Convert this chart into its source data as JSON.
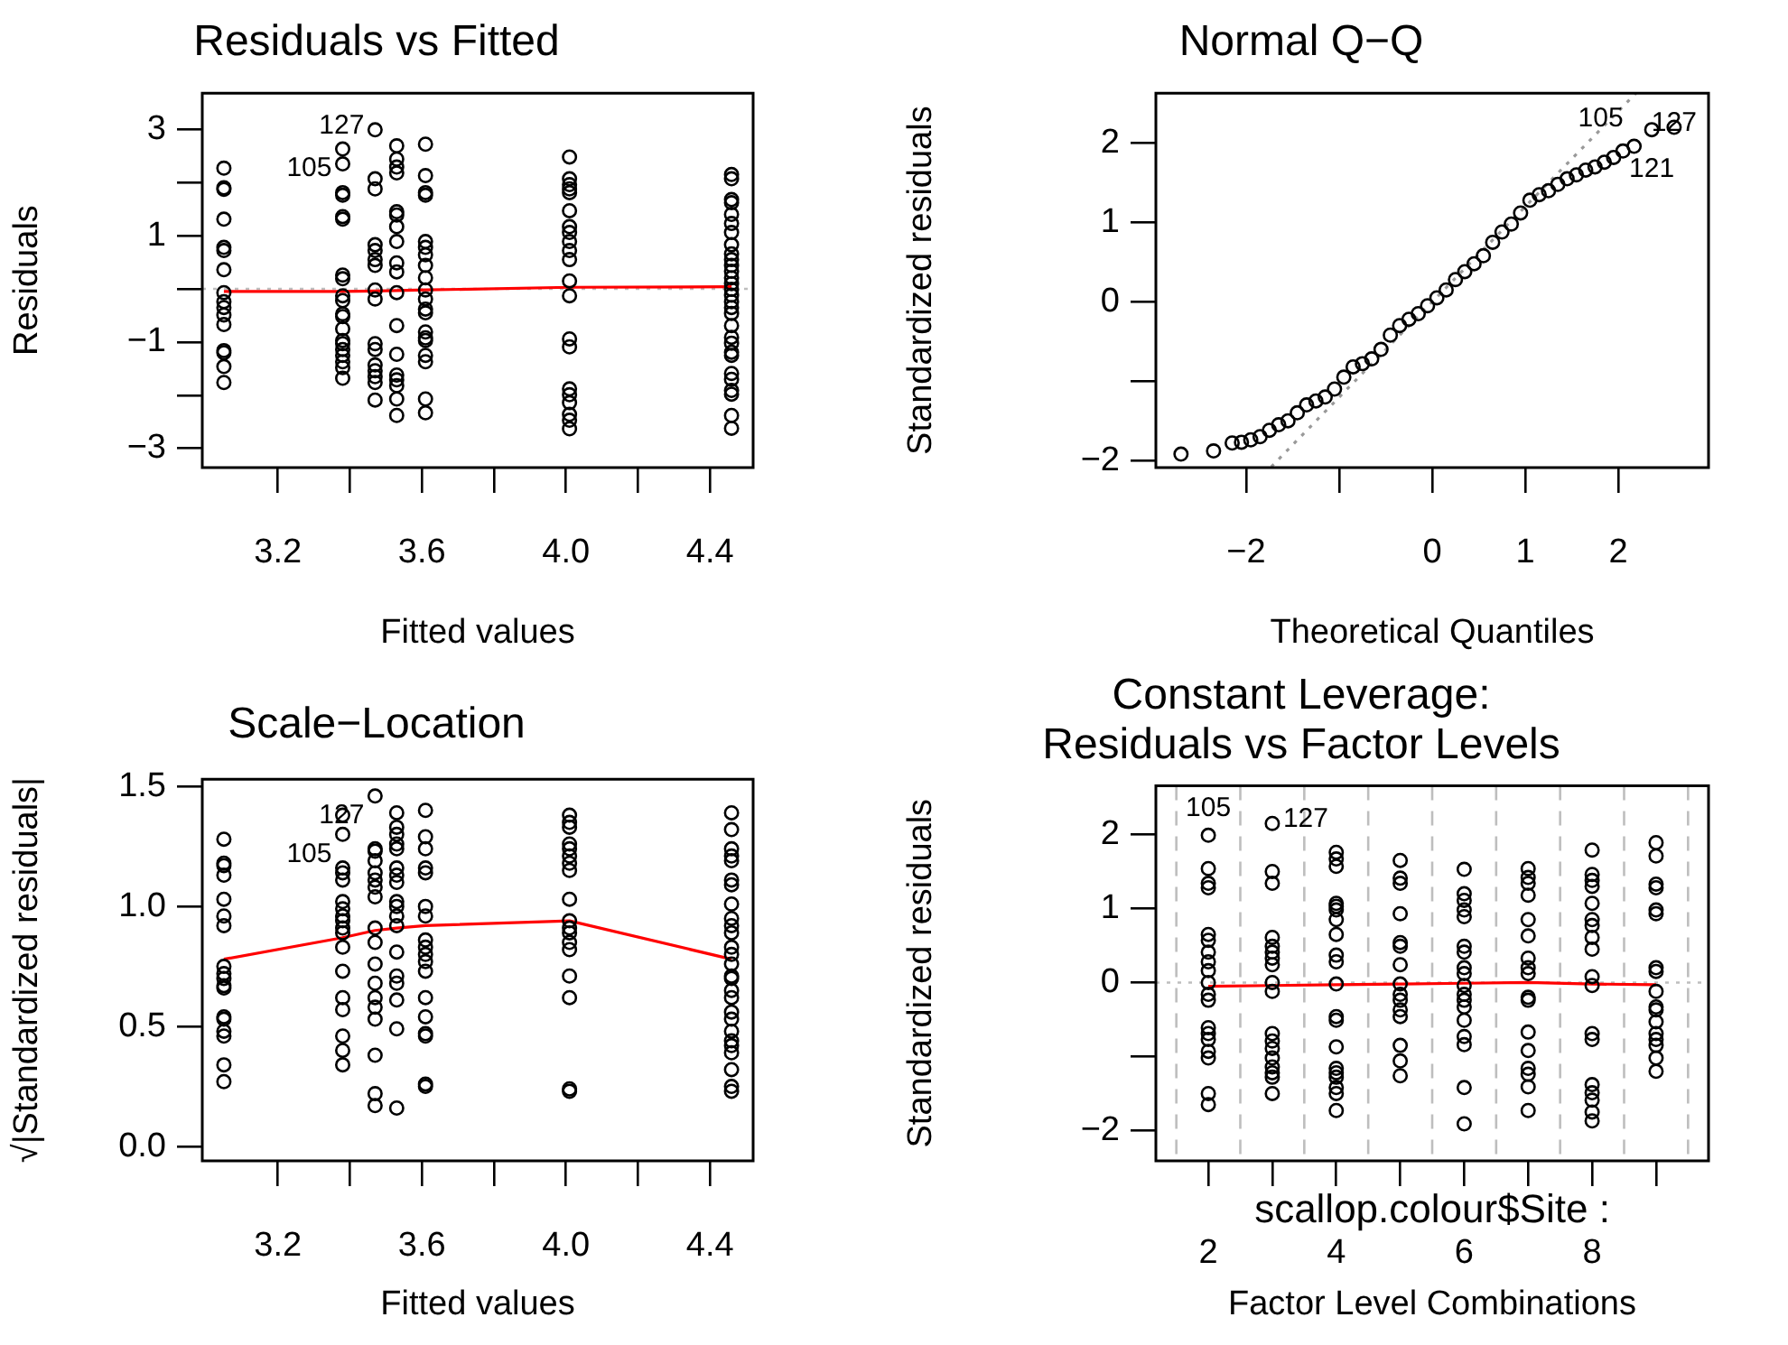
{
  "chart_data": [
    {
      "type": "scatter",
      "title": "Residuals vs Fitted",
      "xlabel": "Fitted values",
      "ylabel": "Residuals",
      "marker": "circle",
      "xlim": [
        2.99,
        4.52
      ],
      "xticks": [
        {
          "value": 3.2,
          "label": "3.2"
        },
        {
          "value": 3.4,
          "label": null
        },
        {
          "value": 3.6,
          "label": "3.6"
        },
        {
          "value": 3.8,
          "label": null
        },
        {
          "value": 4.0,
          "label": "4.0"
        },
        {
          "value": 4.2,
          "label": null
        },
        {
          "value": 4.4,
          "label": "4.4"
        }
      ],
      "ylim": [
        -3.36,
        3.68
      ],
      "yticks": [
        {
          "value": -3,
          "label": "−3"
        },
        {
          "value": -2,
          "label": null
        },
        {
          "value": -1,
          "label": "−1"
        },
        {
          "value": 0,
          "label": null
        },
        1,
        {
          "value": 2,
          "label": null
        },
        3
      ],
      "ref_lines": [
        {
          "axis": "y",
          "value": 0,
          "color": "#bebebe",
          "line_style": "dotted"
        }
      ],
      "annotations": [
        {
          "text": "127",
          "x": 3.47,
          "y": 2.99
        },
        {
          "text": "105",
          "x": 3.38,
          "y": 2.63
        }
      ],
      "series": [
        {
          "color": "#000000",
          "x": [
            3.05,
            3.05,
            3.05,
            3.05,
            3.05,
            3.05,
            3.05,
            3.05,
            3.05,
            3.05,
            3.05,
            3.05,
            3.05,
            3.05,
            3.05,
            3.05
          ],
          "values": [
            2.27,
            1.9,
            1.87,
            1.31,
            0.78,
            0.72,
            0.36,
            -0.07,
            -0.24,
            -0.35,
            -0.49,
            -0.67,
            -1.16,
            -1.2,
            -1.46,
            -1.76
          ]
        },
        {
          "color": "#000000",
          "x": [
            3.38,
            3.38,
            3.38,
            3.38,
            3.38,
            3.38,
            3.38,
            3.38,
            3.38,
            3.38,
            3.38,
            3.38,
            3.38,
            3.38,
            3.38,
            3.38,
            3.38,
            3.38,
            3.38,
            3.38
          ],
          "values": [
            2.63,
            2.35,
            1.81,
            1.76,
            1.36,
            1.31,
            0.26,
            0.19,
            -0.13,
            -0.22,
            -0.47,
            -0.52,
            -0.75,
            -0.97,
            -1.03,
            -1.14,
            -1.25,
            -1.37,
            -1.48,
            -1.68
          ]
        },
        {
          "color": "#000000",
          "x": [
            3.47,
            3.47,
            3.47,
            3.47,
            3.47,
            3.47,
            3.47,
            3.47,
            3.47,
            3.47,
            3.47,
            3.47,
            3.47,
            3.47,
            3.47,
            3.47
          ],
          "values": [
            2.99,
            2.07,
            1.88,
            0.83,
            0.72,
            0.55,
            0.44,
            -0.02,
            -0.19,
            -1.03,
            -1.14,
            -1.43,
            -1.54,
            -1.65,
            -1.76,
            -2.09
          ]
        },
        {
          "color": "#000000",
          "x": [
            3.53,
            3.53,
            3.53,
            3.53,
            3.53,
            3.53,
            3.53,
            3.53,
            3.53,
            3.53,
            3.53,
            3.53,
            3.53,
            3.53,
            3.53,
            3.53,
            3.53,
            3.53
          ],
          "values": [
            2.69,
            2.44,
            2.29,
            2.18,
            1.45,
            1.39,
            1.17,
            0.89,
            0.49,
            0.32,
            -0.07,
            -0.69,
            -1.23,
            -1.62,
            -1.71,
            -1.82,
            -2.07,
            -2.38
          ]
        },
        {
          "color": "#000000",
          "x": [
            3.61,
            3.61,
            3.61,
            3.61,
            3.61,
            3.61,
            3.61,
            3.61,
            3.61,
            3.61,
            3.61,
            3.61,
            3.61,
            3.61,
            3.61,
            3.61,
            3.61,
            3.61,
            3.61,
            3.61
          ],
          "values": [
            2.72,
            2.13,
            1.81,
            1.76,
            0.89,
            0.78,
            0.64,
            0.44,
            0.21,
            -0.02,
            -0.19,
            -0.38,
            -0.45,
            -0.81,
            -0.92,
            -0.97,
            -1.25,
            -1.37,
            -2.07,
            -2.33
          ]
        },
        {
          "color": "#000000",
          "x": [
            4.01,
            4.01,
            4.01,
            4.01,
            4.01,
            4.01,
            4.01,
            4.01,
            4.01,
            4.01,
            4.01,
            4.01,
            4.01,
            4.01,
            4.01,
            4.01,
            4.01,
            4.01,
            4.01,
            4.01,
            4.01
          ],
          "values": [
            2.48,
            2.07,
            1.96,
            1.88,
            1.81,
            1.47,
            1.17,
            1.06,
            0.89,
            0.72,
            0.55,
            0.15,
            -0.13,
            -0.94,
            -1.09,
            -1.88,
            -1.99,
            -2.14,
            -2.36,
            -2.47,
            -2.63
          ]
        },
        {
          "color": "#000000",
          "x": [
            4.46,
            4.46,
            4.46,
            4.46,
            4.46,
            4.46,
            4.46,
            4.46,
            4.46,
            4.46,
            4.46,
            4.46,
            4.46,
            4.46,
            4.46,
            4.46,
            4.46,
            4.46,
            4.46,
            4.46,
            4.46,
            4.46,
            4.46,
            4.46,
            4.46,
            4.46,
            4.46,
            4.46,
            4.46,
            4.46
          ],
          "values": [
            2.15,
            2.07,
            1.68,
            1.62,
            1.4,
            1.23,
            1.06,
            0.83,
            0.66,
            0.55,
            0.44,
            0.33,
            0.21,
            0.1,
            -0.01,
            -0.12,
            -0.24,
            -0.35,
            -0.46,
            -0.69,
            -0.91,
            -1.02,
            -1.19,
            -1.25,
            -1.59,
            -1.7,
            -1.91,
            -1.98,
            -2.38,
            -2.62
          ]
        },
        {
          "type": "line",
          "marker": "none",
          "color": "#ff0000",
          "x": [
            3.05,
            3.38,
            3.47,
            3.53,
            3.61,
            4.01,
            4.46
          ],
          "values": [
            -0.05,
            -0.05,
            -0.04,
            -0.03,
            -0.02,
            0.03,
            0.04
          ]
        }
      ]
    },
    {
      "type": "scatter",
      "title": "Normal Q−Q",
      "xlabel": "Theoretical Quantiles",
      "ylabel": "Standardized residuals",
      "marker": "circle",
      "xlim": [
        -2.97,
        2.97
      ],
      "xticks": [
        {
          "value": -2,
          "label": "−2"
        },
        {
          "value": -1,
          "label": null
        },
        0,
        1,
        2
      ],
      "ylim": [
        -2.09,
        2.63
      ],
      "yticks": [
        {
          "value": -2,
          "label": "−2"
        },
        {
          "value": -1,
          "label": null
        },
        0,
        1,
        2
      ],
      "annotations": [
        {
          "text": "105",
          "x": 2.17,
          "y": 1.96
        },
        {
          "text": "121",
          "x": 2.36,
          "y": 2.17
        },
        {
          "text": "127",
          "x": 2.6,
          "y": 2.2
        }
      ],
      "series": [
        {
          "color": "#000000",
          "x": [
            -2.7,
            -2.35,
            -2.15,
            -2.05,
            -1.95,
            -1.85,
            -1.75,
            -1.65,
            -1.55,
            -1.45,
            -1.35,
            -1.25,
            -1.15,
            -1.05,
            -0.95,
            -0.85,
            -0.75,
            -0.65,
            -0.55,
            -0.45,
            -0.35,
            -0.25,
            -0.15,
            -0.05,
            0.05,
            0.15,
            0.25,
            0.35,
            0.45,
            0.55,
            0.65,
            0.75,
            0.85,
            0.95,
            1.05,
            1.15,
            1.25,
            1.35,
            1.45,
            1.55,
            1.65,
            1.75,
            1.85,
            1.95,
            2.05,
            2.17,
            2.36,
            2.6
          ],
          "values": [
            -1.92,
            -1.88,
            -1.78,
            -1.77,
            -1.74,
            -1.7,
            -1.62,
            -1.55,
            -1.5,
            -1.4,
            -1.3,
            -1.25,
            -1.2,
            -1.1,
            -0.95,
            -0.82,
            -0.78,
            -0.72,
            -0.6,
            -0.42,
            -0.3,
            -0.22,
            -0.15,
            -0.05,
            0.05,
            0.15,
            0.28,
            0.38,
            0.48,
            0.58,
            0.75,
            0.88,
            0.98,
            1.12,
            1.28,
            1.35,
            1.4,
            1.48,
            1.55,
            1.6,
            1.66,
            1.7,
            1.76,
            1.82,
            1.9,
            1.96,
            2.17,
            2.2
          ]
        },
        {
          "type": "line",
          "marker": "none",
          "color": "#999999",
          "line_style": "dotted",
          "x": [
            -1.73,
            2.19
          ],
          "values": [
            -2.08,
            2.63
          ]
        }
      ]
    },
    {
      "type": "scatter",
      "title": "Scale−Location",
      "xlabel": "Fitted values",
      "ylabel": "√|Standardized residuals|",
      "marker": "circle",
      "xlim": [
        2.99,
        4.52
      ],
      "xticks": [
        {
          "value": 3.2,
          "label": "3.2"
        },
        {
          "value": 3.4,
          "label": null
        },
        {
          "value": 3.6,
          "label": "3.6"
        },
        {
          "value": 3.8,
          "label": null
        },
        {
          "value": 4.0,
          "label": "4.0"
        },
        {
          "value": 4.2,
          "label": null
        },
        {
          "value": 4.4,
          "label": "4.4"
        }
      ],
      "ylim": [
        -0.06,
        1.53
      ],
      "yticks": [
        {
          "value": 0,
          "label": "0.0"
        },
        {
          "value": 0.5,
          "label": "0.5"
        },
        {
          "value": 1,
          "label": "1.0"
        },
        1.5
      ],
      "annotations": [
        {
          "text": "127",
          "x": 3.47,
          "y": 1.46
        },
        {
          "text": "105",
          "x": 3.38,
          "y": 1.38
        }
      ],
      "series": [
        {
          "color": "#000000",
          "x": [
            3.05,
            3.05,
            3.05,
            3.05,
            3.05,
            3.05,
            3.05,
            3.05,
            3.05,
            3.05,
            3.05,
            3.05,
            3.05,
            3.05,
            3.05,
            3.05,
            3.05,
            3.05
          ],
          "values": [
            1.28,
            1.18,
            1.17,
            1.13,
            1.03,
            0.96,
            0.92,
            0.75,
            0.72,
            0.7,
            0.67,
            0.66,
            0.54,
            0.53,
            0.48,
            0.46,
            0.34,
            0.27
          ]
        },
        {
          "color": "#000000",
          "x": [
            3.38,
            3.38,
            3.38,
            3.38,
            3.38,
            3.38,
            3.38,
            3.38,
            3.38,
            3.38,
            3.38,
            3.38,
            3.38,
            3.38,
            3.38,
            3.38,
            3.38,
            3.38
          ],
          "values": [
            1.38,
            1.3,
            1.16,
            1.14,
            1.11,
            1.02,
            0.99,
            0.96,
            0.94,
            0.91,
            0.89,
            0.83,
            0.73,
            0.62,
            0.57,
            0.46,
            0.4,
            0.34
          ]
        },
        {
          "color": "#000000",
          "x": [
            3.47,
            3.47,
            3.47,
            3.47,
            3.47,
            3.47,
            3.47,
            3.47,
            3.47,
            3.47,
            3.47,
            3.47,
            3.47,
            3.47,
            3.47,
            3.47,
            3.47,
            3.47
          ],
          "values": [
            1.46,
            1.24,
            1.23,
            1.19,
            1.14,
            1.11,
            1.08,
            1.04,
            0.91,
            0.85,
            0.76,
            0.68,
            0.62,
            0.58,
            0.53,
            0.38,
            0.22,
            0.17
          ]
        },
        {
          "color": "#000000",
          "x": [
            3.53,
            3.53,
            3.53,
            3.53,
            3.53,
            3.53,
            3.53,
            3.53,
            3.53,
            3.53,
            3.53,
            3.53,
            3.53,
            3.53,
            3.53,
            3.53,
            3.53,
            3.53
          ],
          "values": [
            1.39,
            1.33,
            1.3,
            1.26,
            1.24,
            1.16,
            1.13,
            1.1,
            1.02,
            1.0,
            0.96,
            0.92,
            0.81,
            0.71,
            0.68,
            0.61,
            0.49,
            0.16
          ]
        },
        {
          "color": "#000000",
          "x": [
            3.61,
            3.61,
            3.61,
            3.61,
            3.61,
            3.61,
            3.61,
            3.61,
            3.61,
            3.61,
            3.61,
            3.61,
            3.61,
            3.61,
            3.61,
            3.61,
            3.61,
            3.61
          ],
          "values": [
            1.4,
            1.29,
            1.24,
            1.16,
            1.14,
            1.0,
            0.96,
            0.86,
            0.83,
            0.8,
            0.77,
            0.73,
            0.62,
            0.54,
            0.47,
            0.46,
            0.26,
            0.25
          ]
        },
        {
          "color": "#000000",
          "x": [
            4.01,
            4.01,
            4.01,
            4.01,
            4.01,
            4.01,
            4.01,
            4.01,
            4.01,
            4.01,
            4.01,
            4.01,
            4.01,
            4.01,
            4.01,
            4.01,
            4.01,
            4.01
          ],
          "values": [
            1.38,
            1.35,
            1.33,
            1.26,
            1.24,
            1.21,
            1.18,
            1.15,
            1.03,
            0.94,
            0.91,
            0.89,
            0.85,
            0.82,
            0.71,
            0.62,
            0.24,
            0.23
          ]
        },
        {
          "color": "#000000",
          "x": [
            4.46,
            4.46,
            4.46,
            4.46,
            4.46,
            4.46,
            4.46,
            4.46,
            4.46,
            4.46,
            4.46,
            4.46,
            4.46,
            4.46,
            4.46,
            4.46,
            4.46,
            4.46,
            4.46,
            4.46,
            4.46,
            4.46,
            4.46,
            4.46,
            4.46,
            4.46,
            4.46
          ],
          "values": [
            1.39,
            1.32,
            1.24,
            1.21,
            1.19,
            1.11,
            1.09,
            1.01,
            0.95,
            0.92,
            0.89,
            0.83,
            0.8,
            0.76,
            0.71,
            0.7,
            0.65,
            0.62,
            0.56,
            0.53,
            0.48,
            0.44,
            0.42,
            0.39,
            0.32,
            0.25,
            0.23
          ]
        },
        {
          "type": "line",
          "marker": "none",
          "color": "#ff0000",
          "x": [
            3.05,
            3.38,
            3.47,
            3.53,
            3.61,
            4.01,
            4.46
          ],
          "values": [
            0.78,
            0.87,
            0.9,
            0.91,
            0.92,
            0.94,
            0.78
          ]
        }
      ]
    },
    {
      "type": "scatter",
      "title": "Constant Leverage:\nResiduals vs Factor Levels",
      "xlabel": "Factor Level Combinations",
      "ylabel": "Standardized residuals",
      "marker": "circle",
      "xlim": [
        1.18,
        9.82
      ],
      "xticks": [
        2,
        {
          "value": 3,
          "label": null
        },
        4,
        {
          "value": 5,
          "label": null
        },
        6,
        {
          "value": 7,
          "label": null
        },
        8,
        {
          "value": 9,
          "label": null
        }
      ],
      "ylim": [
        -2.41,
        2.66
      ],
      "yticks": [
        {
          "value": -2,
          "label": "−2"
        },
        {
          "value": -1,
          "label": null
        },
        0,
        1,
        2
      ],
      "ref_lines": [
        {
          "axis": "y",
          "value": 0,
          "color": "#bebebe",
          "line_style": "dotted"
        },
        {
          "axis": "x",
          "value": 1.5,
          "color": "#bebebe",
          "line_style": "dashed"
        },
        {
          "axis": "x",
          "value": 2.5,
          "color": "#bebebe",
          "line_style": "dashed"
        },
        {
          "axis": "x",
          "value": 3.5,
          "color": "#bebebe",
          "line_style": "dashed"
        },
        {
          "axis": "x",
          "value": 4.5,
          "color": "#bebebe",
          "line_style": "dashed"
        },
        {
          "axis": "x",
          "value": 5.5,
          "color": "#bebebe",
          "line_style": "dashed"
        },
        {
          "axis": "x",
          "value": 6.5,
          "color": "#bebebe",
          "line_style": "dashed"
        },
        {
          "axis": "x",
          "value": 7.5,
          "color": "#bebebe",
          "line_style": "dashed"
        },
        {
          "axis": "x",
          "value": 8.5,
          "color": "#bebebe",
          "line_style": "dashed"
        },
        {
          "axis": "x",
          "value": 9.5,
          "color": "#bebebe",
          "line_style": "dashed"
        }
      ],
      "annotations": [
        "scallop.colour$Site :",
        {
          "text": "127",
          "x": 3,
          "y": 2.15
        },
        {
          "text": "105",
          "x": 2,
          "y": 1.99
        }
      ],
      "series": [
        {
          "color": "#000000",
          "x": [
            2,
            2,
            2,
            2,
            2,
            2,
            2,
            2,
            2,
            2,
            2,
            2,
            2,
            2,
            2,
            2,
            2,
            2,
            2
          ],
          "values": [
            1.99,
            1.54,
            1.34,
            1.28,
            0.65,
            0.57,
            0.41,
            0.28,
            0.16,
            0.0,
            -0.16,
            -0.24,
            -0.61,
            -0.69,
            -0.77,
            -0.93,
            -1.02,
            -1.5,
            -1.65
          ]
        },
        {
          "color": "#000000",
          "x": [
            3,
            3,
            3,
            3,
            3,
            3,
            3,
            3,
            3,
            3,
            3,
            3,
            3,
            3,
            3,
            3,
            3,
            3
          ],
          "values": [
            2.15,
            1.5,
            1.34,
            0.61,
            0.49,
            0.41,
            0.33,
            0.24,
            0.0,
            -0.12,
            -0.69,
            -0.79,
            -0.89,
            -1.02,
            -1.14,
            -1.22,
            -1.28,
            -1.5
          ]
        },
        {
          "color": "#000000",
          "x": [
            4,
            4,
            4,
            4,
            4,
            4,
            4,
            4,
            4,
            4,
            4,
            4,
            4,
            4,
            4,
            4,
            4,
            4,
            4,
            4
          ],
          "values": [
            1.76,
            1.67,
            1.57,
            1.07,
            1.03,
            0.98,
            0.85,
            0.65,
            0.37,
            0.28,
            -0.02,
            -0.46,
            -0.51,
            -0.87,
            -1.16,
            -1.22,
            -1.28,
            -1.42,
            -1.5,
            -1.73
          ]
        },
        {
          "color": "#000000",
          "x": [
            5,
            5,
            5,
            5,
            5,
            5,
            5,
            5,
            5,
            5,
            5,
            5,
            5,
            5,
            5
          ],
          "values": [
            1.65,
            1.41,
            1.34,
            0.93,
            0.54,
            0.49,
            0.24,
            -0.02,
            -0.16,
            -0.24,
            -0.37,
            -0.46,
            -0.85,
            -1.06,
            -1.26
          ]
        },
        {
          "color": "#000000",
          "x": [
            6,
            6,
            6,
            6,
            6,
            6,
            6,
            6,
            6,
            6,
            6,
            6,
            6,
            6,
            6,
            6,
            6,
            6
          ],
          "values": [
            1.53,
            1.2,
            1.11,
            0.98,
            0.89,
            0.49,
            0.41,
            0.2,
            0.12,
            -0.04,
            -0.16,
            -0.24,
            -0.33,
            -0.51,
            -0.73,
            -0.84,
            -1.42,
            -1.91
          ]
        },
        {
          "color": "#000000",
          "x": [
            7,
            7,
            7,
            7,
            7,
            7,
            7,
            7,
            7,
            7,
            7,
            7,
            7,
            7,
            7,
            7,
            7
          ],
          "values": [
            1.54,
            1.42,
            1.34,
            1.18,
            0.85,
            0.63,
            0.33,
            0.2,
            0.12,
            -0.2,
            -0.24,
            -0.67,
            -0.92,
            -1.16,
            -1.24,
            -1.41,
            -1.73
          ]
        },
        {
          "color": "#000000",
          "x": [
            8,
            8,
            8,
            8,
            8,
            8,
            8,
            8,
            8,
            8,
            8,
            8,
            8,
            8,
            8,
            8,
            8,
            8
          ],
          "values": [
            1.79,
            1.46,
            1.38,
            1.3,
            1.07,
            0.85,
            0.77,
            0.61,
            0.45,
            0.08,
            -0.04,
            -0.69,
            -0.77,
            -1.38,
            -1.49,
            -1.59,
            -1.75,
            -1.87
          ]
        },
        {
          "color": "#000000",
          "x": [
            9,
            9,
            9,
            9,
            9,
            9,
            9,
            9,
            9,
            9,
            9,
            9,
            9,
            9,
            9,
            9,
            9
          ],
          "values": [
            1.89,
            1.71,
            1.33,
            1.28,
            0.98,
            0.93,
            0.2,
            0.15,
            -0.12,
            -0.33,
            -0.37,
            -0.53,
            -0.69,
            -0.77,
            -0.85,
            -1.02,
            -1.2
          ]
        },
        {
          "type": "line",
          "marker": "none",
          "color": "#ff0000",
          "x": [
            2,
            3,
            4,
            5,
            6,
            7,
            8,
            9
          ],
          "values": [
            -0.05,
            -0.04,
            -0.03,
            -0.02,
            -0.01,
            0.0,
            -0.02,
            -0.03
          ]
        }
      ]
    }
  ]
}
